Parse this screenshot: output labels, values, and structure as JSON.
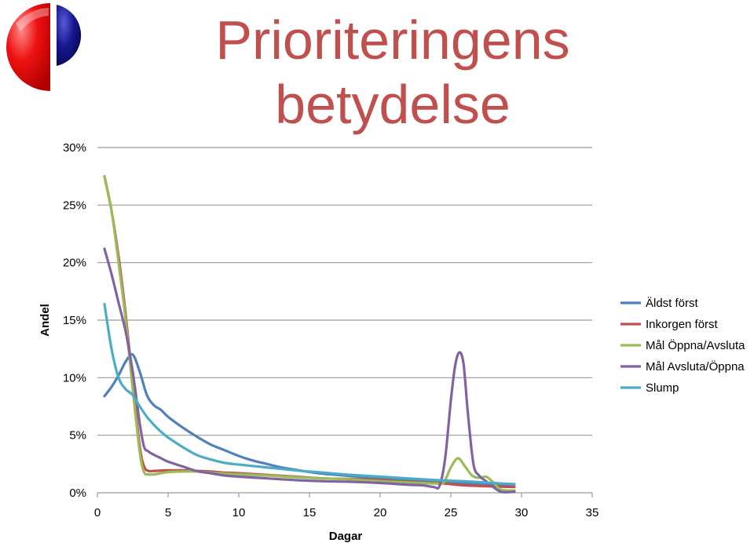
{
  "page_title_line1": "Prioriteringens",
  "page_title_line2": "betydelse",
  "logo": {
    "left_color": "#e8000f",
    "right_color": "#10108a",
    "icon": "split-circle-logo"
  },
  "chart_data": {
    "type": "line",
    "title": "Prioriteringens betydelse",
    "xlabel": "Dagar",
    "ylabel": "Andel",
    "xlim": [
      0,
      35
    ],
    "ylim": [
      0,
      30
    ],
    "x_ticks": [
      0,
      5,
      10,
      15,
      20,
      25,
      30,
      35
    ],
    "y_ticks": [
      0,
      5,
      10,
      15,
      20,
      25,
      30
    ],
    "y_tick_labels": [
      "0%",
      "5%",
      "10%",
      "15%",
      "20%",
      "25%",
      "30%"
    ],
    "grid": "horizontal",
    "legend_position": "right",
    "series": [
      {
        "name": "Äldst först",
        "color": "#4f81bd",
        "x": [
          0.5,
          1,
          1.5,
          2,
          2.5,
          3,
          3.5,
          4,
          4.5,
          5,
          6,
          7,
          8,
          9,
          10,
          11,
          12,
          13,
          14,
          15,
          16,
          17,
          18,
          19,
          20,
          21,
          22,
          23,
          24,
          25,
          26,
          27,
          28,
          29,
          29.5
        ],
        "y": [
          8.4,
          9.2,
          10.2,
          11.4,
          12.0,
          10.5,
          8.5,
          7.6,
          7.2,
          6.6,
          5.7,
          4.9,
          4.2,
          3.7,
          3.2,
          2.8,
          2.5,
          2.2,
          2.0,
          1.8,
          1.65,
          1.55,
          1.45,
          1.35,
          1.25,
          1.15,
          1.05,
          1.0,
          0.95,
          0.9,
          0.85,
          0.8,
          0.75,
          0.7,
          0.7
        ]
      },
      {
        "name": "Inkorgen först",
        "color": "#c0504d",
        "x": [
          0.5,
          1,
          1.5,
          2,
          2.5,
          3,
          3.3,
          3.6,
          4,
          5,
          6,
          7,
          8,
          9,
          10,
          12,
          14,
          16,
          18,
          20,
          22,
          24,
          25,
          26,
          28,
          29.5
        ],
        "y": [
          27.5,
          24.5,
          20.5,
          15.5,
          9.5,
          4.0,
          2.3,
          1.9,
          1.9,
          1.95,
          1.95,
          1.9,
          1.85,
          1.75,
          1.7,
          1.55,
          1.4,
          1.25,
          1.2,
          1.1,
          0.95,
          0.85,
          0.75,
          0.65,
          0.55,
          0.5
        ]
      },
      {
        "name": "Mål  Öppna/Avsluta",
        "color": "#9bbb59",
        "x": [
          0.5,
          1,
          1.5,
          2,
          2.5,
          3,
          3.3,
          3.6,
          4,
          4.5,
          5,
          6,
          7,
          8,
          10,
          12,
          14,
          16,
          18,
          20,
          22,
          24,
          24.5,
          25,
          25.5,
          26,
          26.5,
          27,
          27.5,
          28,
          28.5,
          29,
          29.5
        ],
        "y": [
          27.5,
          24.5,
          20.0,
          15.0,
          9.0,
          3.5,
          1.8,
          1.6,
          1.6,
          1.7,
          1.8,
          1.85,
          1.85,
          1.75,
          1.6,
          1.5,
          1.35,
          1.25,
          1.15,
          1.0,
          0.9,
          0.8,
          0.9,
          2.2,
          3.0,
          2.3,
          1.5,
          1.3,
          1.4,
          0.9,
          0.3,
          0.2,
          0.2
        ]
      },
      {
        "name": "Mål  Avsluta/Öppna",
        "color": "#8064a2",
        "x": [
          0.5,
          1,
          1.5,
          2,
          2.5,
          3,
          3.3,
          3.6,
          4,
          4.5,
          5,
          6,
          7,
          8,
          9,
          10,
          12,
          14,
          16,
          18,
          20,
          22,
          23,
          23.8,
          24.2,
          24.6,
          25,
          25.3,
          25.6,
          25.9,
          26.2,
          26.6,
          27,
          27.5,
          28,
          28.5,
          29,
          29.5
        ],
        "y": [
          21.2,
          19.0,
          16.5,
          14.0,
          10.5,
          6.0,
          4.0,
          3.6,
          3.3,
          3.0,
          2.7,
          2.3,
          1.9,
          1.7,
          1.5,
          1.4,
          1.25,
          1.1,
          1.0,
          0.95,
          0.85,
          0.7,
          0.65,
          0.5,
          0.6,
          3.0,
          8.0,
          11.0,
          12.2,
          11.2,
          7.0,
          2.5,
          1.5,
          1.0,
          0.5,
          0.1,
          0.05,
          0.1
        ]
      },
      {
        "name": "Slump",
        "color": "#4bacc6",
        "x": [
          0.5,
          1,
          1.5,
          2,
          2.5,
          3,
          3.5,
          4,
          4.5,
          5,
          6,
          7,
          8,
          9,
          10,
          12,
          14,
          16,
          18,
          20,
          22,
          24,
          26,
          28,
          29.5
        ],
        "y": [
          16.4,
          12.5,
          10.0,
          9.0,
          8.5,
          7.5,
          6.6,
          5.9,
          5.3,
          4.8,
          4.0,
          3.3,
          2.9,
          2.6,
          2.45,
          2.2,
          1.95,
          1.75,
          1.55,
          1.4,
          1.25,
          1.1,
          1.0,
          0.85,
          0.75
        ]
      }
    ]
  }
}
